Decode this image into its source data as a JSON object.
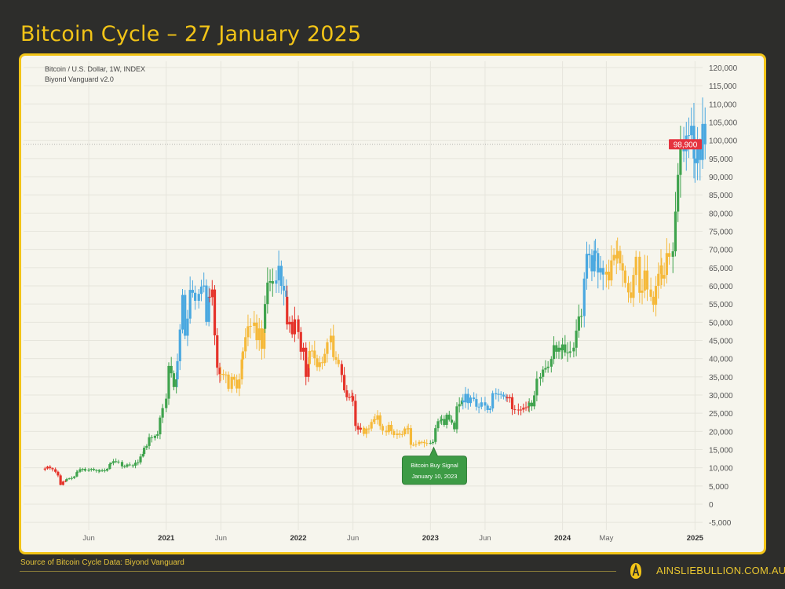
{
  "header": {
    "title": "Bitcoin Cycle – 27 January 2025"
  },
  "legend": {
    "line1": "Bitcoin / U.S. Dollar, 1W, INDEX",
    "line2": "Biyond Vanguard v2.0"
  },
  "footer": {
    "source": "Source of Bitcoin Cycle Data: Biyond Vanguard",
    "site": "AINSLIEBULLION.COM.AU",
    "logo_letter": "A"
  },
  "colors": {
    "accent": "#f2c417",
    "green": "#3fa34d",
    "blue": "#4aa8e0",
    "orange": "#f5b93a",
    "red": "#e5332a",
    "price_tag": "#e5333f"
  },
  "chart_data": {
    "type": "candlestick",
    "title": "",
    "xlabel": "",
    "ylabel": "",
    "ylim": [
      -5000,
      120000
    ],
    "grid": true,
    "y_ticks": [
      "120,000",
      "115,000",
      "110,000",
      "105,000",
      "100,000",
      "95,000",
      "90,000",
      "85,000",
      "80,000",
      "75,000",
      "70,000",
      "65,000",
      "60,000",
      "55,000",
      "50,000",
      "45,000",
      "40,000",
      "35,000",
      "30,000",
      "25,000",
      "20,000",
      "15,000",
      "10,000",
      "5,000",
      "0",
      "-5,000"
    ],
    "x_ticks": [
      {
        "label": "Jun",
        "date": "2020-06-01",
        "bold": false
      },
      {
        "label": "2021",
        "date": "2021-01-01",
        "bold": true
      },
      {
        "label": "Jun",
        "date": "2021-06-01",
        "bold": false
      },
      {
        "label": "2022",
        "date": "2022-01-01",
        "bold": true
      },
      {
        "label": "Jun",
        "date": "2022-06-01",
        "bold": false
      },
      {
        "label": "2023",
        "date": "2023-01-01",
        "bold": true
      },
      {
        "label": "Jun",
        "date": "2023-06-01",
        "bold": false
      },
      {
        "label": "2024",
        "date": "2024-01-01",
        "bold": true
      },
      {
        "label": "May",
        "date": "2024-05-01",
        "bold": false
      },
      {
        "label": "2025",
        "date": "2025-01-01",
        "bold": true
      }
    ],
    "last_price": 98900,
    "last_price_label": "98,900",
    "weekly_closes_by_month": {
      "2020-02": [
        9800,
        10300,
        9900,
        9600
      ],
      "2020-03": [
        8900,
        7900,
        5300,
        6200,
        6400
      ],
      "2020-04": [
        6900,
        7100,
        7200,
        7600,
        8800
      ],
      "2020-05": [
        8900,
        9600,
        9700,
        9200
      ],
      "2020-06": [
        9500,
        9700,
        9400,
        9300,
        9100
      ],
      "2020-07": [
        9200,
        9300,
        9200,
        9700,
        11000
      ],
      "2020-08": [
        11300,
        11800,
        11700,
        11600
      ],
      "2020-09": [
        10400,
        10300,
        10900,
        10700
      ],
      "2020-10": [
        10600,
        11400,
        11500,
        13100,
        13800
      ],
      "2020-11": [
        15500,
        16000,
        18400,
        18200
      ],
      "2020-12": [
        18800,
        19200,
        23800,
        26400
      ],
      "2021-01": [
        29000,
        38000,
        36000,
        32200,
        34300
      ],
      "2021-02": [
        39300,
        48000,
        57500,
        46300
      ],
      "2021-03": [
        51000,
        58900,
        58100,
        55900
      ],
      "2021-04": [
        57800,
        59800,
        60100,
        50100,
        57000
      ],
      "2021-05": [
        56900,
        59000,
        46400,
        37500,
        35700
      ],
      "2021-06": [
        35800,
        35500,
        35600,
        31700
      ],
      "2021-07": [
        35000,
        34200,
        31800,
        34300,
        39800
      ],
      "2021-08": [
        42000,
        45900,
        48900,
        49000
      ],
      "2021-09": [
        49900,
        45100,
        48300,
        42700,
        48200
      ],
      "2021-10": [
        55000,
        60900,
        61300,
        60600
      ],
      "2021-11": [
        61500,
        65500,
        60000,
        58700,
        57000
      ],
      "2021-12": [
        49400,
        50100,
        46700,
        50800
      ],
      "2022-01": [
        47300,
        41900,
        43000,
        35000,
        38500
      ],
      "2022-02": [
        42100,
        42200,
        40100,
        37700
      ],
      "2022-03": [
        39000,
        38800,
        41300,
        44500
      ],
      "2022-04": [
        46300,
        40400,
        39700,
        38500
      ],
      "2022-05": [
        35500,
        31300,
        29400,
        29400,
        29700
      ],
      "2022-06": [
        28400,
        21500,
        20500,
        21000
      ],
      "2022-07": [
        19300,
        20800,
        20800,
        22600,
        23300
      ],
      "2022-08": [
        23200,
        24400,
        21500,
        20200
      ],
      "2022-09": [
        19800,
        21800,
        20100,
        19000
      ],
      "2022-10": [
        19400,
        19100,
        19200,
        20800,
        20600
      ],
      "2022-11": [
        20900,
        16300,
        16300,
        16500
      ],
      "2022-12": [
        17100,
        17100,
        16800,
        16800
      ],
      "2023-01": [
        16800,
        17100,
        20900,
        22800,
        23000
      ],
      "2023-02": [
        23400,
        21800,
        24600,
        23200
      ],
      "2023-03": [
        22400,
        20600,
        26900,
        27500,
        28500
      ],
      "2023-04": [
        28000,
        30300,
        27800,
        29300
      ],
      "2023-05": [
        28900,
        26800,
        26800,
        28000
      ],
      "2023-06": [
        27100,
        25900,
        26300,
        30500
      ],
      "2023-07": [
        30200,
        30300,
        30100,
        29600,
        29400
      ],
      "2023-08": [
        29100,
        29400,
        26100,
        26000
      ],
      "2023-09": [
        25900,
        26000,
        26500,
        26600,
        26900
      ],
      "2023-10": [
        27900,
        26900,
        29900,
        34500
      ],
      "2023-11": [
        35000,
        37000,
        37400,
        37800
      ],
      "2023-12": [
        39900,
        43700,
        41900,
        43000,
        42300
      ],
      "2024-01": [
        43900,
        41700,
        41600,
        42000
      ],
      "2024-02": [
        43000,
        47700,
        51600,
        51700
      ],
      "2024-03": [
        62000,
        68800,
        68400,
        64000,
        69700
      ],
      "2024-04": [
        69000,
        63700,
        64900,
        63100
      ],
      "2024-05": [
        63900,
        61500,
        67000,
        68500,
        67500
      ],
      "2024-06": [
        69600,
        66200,
        64200,
        60800
      ],
      "2024-07": [
        58200,
        56700,
        63000,
        68000
      ],
      "2024-08": [
        58100,
        58700,
        64200,
        59000
      ],
      "2024-09": [
        57000,
        54800,
        60000,
        63300,
        65600
      ],
      "2024-10": [
        62000,
        63000,
        69000,
        68000
      ],
      "2024-11": [
        69500,
        80400,
        90500,
        98000
      ],
      "2024-12": [
        97000,
        101300,
        101400,
        104000,
        95000
      ],
      "2025-01": [
        93700,
        98300,
        94600,
        104500,
        98900
      ]
    },
    "phases": [
      {
        "from": "2020-02",
        "to": "2020-03",
        "color": "red"
      },
      {
        "from": "2020-04",
        "to": "2021-01",
        "color": "green"
      },
      {
        "from": "2021-02",
        "to": "2021-04",
        "color": "blue"
      },
      {
        "from": "2021-05",
        "to": "2021-05",
        "color": "red"
      },
      {
        "from": "2021-06",
        "to": "2021-09",
        "color": "orange"
      },
      {
        "from": "2021-10",
        "to": "2021-10",
        "color": "green"
      },
      {
        "from": "2021-11",
        "to": "2021-11",
        "color": "blue"
      },
      {
        "from": "2021-12",
        "to": "2022-01",
        "color": "red"
      },
      {
        "from": "2022-02",
        "to": "2022-04",
        "color": "orange"
      },
      {
        "from": "2022-05",
        "to": "2022-06",
        "color": "red"
      },
      {
        "from": "2022-07",
        "to": "2022-12",
        "color": "orange"
      },
      {
        "from": "2023-01",
        "to": "2023-03",
        "color": "green"
      },
      {
        "from": "2023-04",
        "to": "2023-07",
        "color": "blue"
      },
      {
        "from": "2023-08",
        "to": "2023-09",
        "color": "red"
      },
      {
        "from": "2023-10",
        "to": "2024-02",
        "color": "green"
      },
      {
        "from": "2024-03",
        "to": "2024-04",
        "color": "blue"
      },
      {
        "from": "2024-05",
        "to": "2024-10",
        "color": "orange"
      },
      {
        "from": "2024-11",
        "to": "2024-11",
        "color": "green"
      },
      {
        "from": "2024-12",
        "to": "2025-01",
        "color": "blue"
      }
    ],
    "annotations": [
      {
        "title": "Bitcoin Buy Signal",
        "date_label": "January 10, 2023",
        "date": "2023-01-10",
        "value": 17100
      }
    ]
  }
}
